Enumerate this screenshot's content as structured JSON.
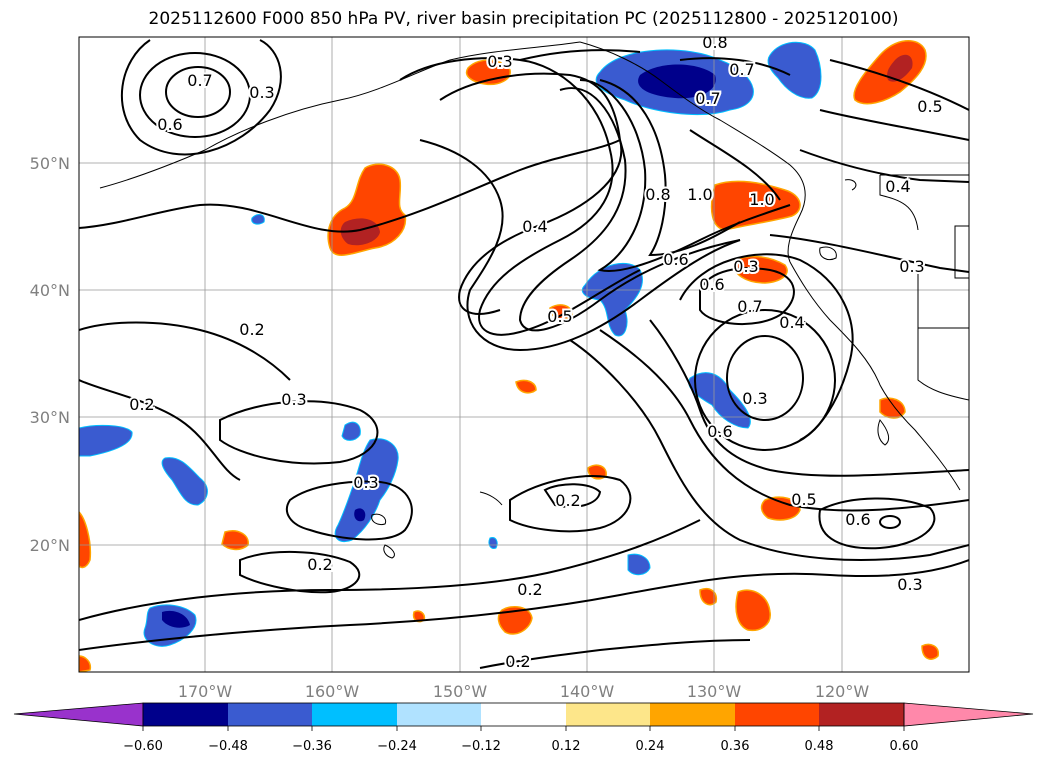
{
  "title": "2025112600 F000 850 hPa PV, river basin precipitation PC (2025112800 - 2025120100)",
  "map": {
    "lon_range": [
      -180,
      -110
    ],
    "lat_range": [
      10,
      60
    ],
    "lat_ticks": [
      {
        "value": 50,
        "label": "50°N"
      },
      {
        "value": 40,
        "label": "40°N"
      },
      {
        "value": 30,
        "label": "30°N"
      },
      {
        "value": 20,
        "label": "20°N"
      }
    ],
    "lon_ticks": [
      {
        "value": -170,
        "label": "170°W"
      },
      {
        "value": -160,
        "label": "160°W"
      },
      {
        "value": -150,
        "label": "150°W"
      },
      {
        "value": -140,
        "label": "140°W"
      },
      {
        "value": -130,
        "label": "130°W"
      },
      {
        "value": -120,
        "label": "120°W"
      }
    ],
    "gridline_color": "#999999"
  },
  "contour_labels": [
    "0.7",
    "0.6",
    "0.3",
    "0.3",
    "0.8",
    "0.7",
    "0.5",
    "0.4",
    "0.4",
    "0.8",
    "1.0",
    "1.0",
    "0.6",
    "0.7",
    "0.6",
    "0.7",
    "0.4",
    "0.3",
    "0.5",
    "0.6",
    "0.2",
    "0.2",
    "0.3",
    "0.3",
    "0.2",
    "0.2",
    "0.2",
    "0.2",
    "0.5",
    "0.6",
    "0.3",
    "0.3",
    "0.3"
  ],
  "colorbar": {
    "colors": [
      "#9932cc",
      "#00008b",
      "#3a5bd0",
      "#00bfff",
      "#b0e2ff",
      "#ffffff",
      "#fde68a",
      "#ffa500",
      "#ff4500",
      "#b22222",
      "#ff88aa"
    ],
    "labels": [
      "−0.60",
      "−0.48",
      "−0.36",
      "−0.24",
      "−0.12",
      "0.12",
      "0.24",
      "0.36",
      "0.48",
      "0.60"
    ]
  }
}
